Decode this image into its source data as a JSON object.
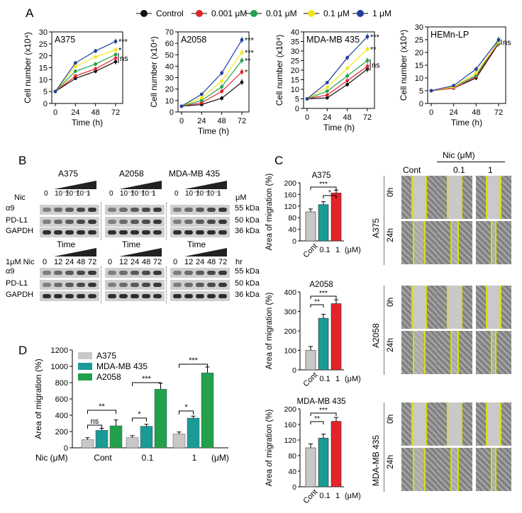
{
  "panel_letters": {
    "a": "A",
    "b": "B",
    "c": "C",
    "d": "D"
  },
  "legend": {
    "items": [
      {
        "label": "Control",
        "color": "#111111"
      },
      {
        "label": "0.001 μM",
        "color": "#e0242b"
      },
      {
        "label": "0.01 μM",
        "color": "#22a04b"
      },
      {
        "label": "0.1 μM",
        "color": "#f2e61a"
      },
      {
        "label": "1 μM",
        "color": "#1f3f9a"
      }
    ]
  },
  "chart_data": [
    {
      "type": "line",
      "panel": "A",
      "title": "A375",
      "xlabel": "Time (h)",
      "ylabel": "Cell number (x10⁴)",
      "x": [
        0,
        24,
        48,
        72
      ],
      "xticks": [
        "0",
        "24",
        "48",
        "72"
      ],
      "ylim": [
        0,
        30
      ],
      "yticks": [
        0,
        5,
        10,
        15,
        20,
        25,
        30
      ],
      "series": [
        {
          "name": "Control",
          "values": [
            5,
            10.5,
            13.5,
            17.5
          ]
        },
        {
          "name": "0.001 μM",
          "values": [
            5,
            11.5,
            14.5,
            19
          ]
        },
        {
          "name": "0.01 μM",
          "values": [
            5,
            13.5,
            16.5,
            20.5
          ]
        },
        {
          "name": "0.1 μM",
          "values": [
            5,
            15.5,
            19.5,
            22.5
          ]
        },
        {
          "name": "1 μM",
          "values": [
            5,
            17,
            22,
            26
          ]
        }
      ],
      "annotations": [
        "***",
        "*",
        "ns"
      ]
    },
    {
      "type": "line",
      "panel": "A",
      "title": "A2058",
      "xlabel": "Time (h)",
      "ylabel": "Cell number (x10⁴)",
      "x": [
        0,
        24,
        48,
        72
      ],
      "xticks": [
        "0",
        "24",
        "48",
        "72"
      ],
      "ylim": [
        0,
        70
      ],
      "yticks": [
        0,
        10,
        20,
        30,
        40,
        50,
        60,
        70
      ],
      "series": [
        {
          "name": "Control",
          "values": [
            5,
            6.5,
            12,
            26
          ]
        },
        {
          "name": "0.001 μM",
          "values": [
            5,
            8,
            18,
            35
          ]
        },
        {
          "name": "0.01 μM",
          "values": [
            5,
            10,
            22,
            45
          ]
        },
        {
          "name": "0.1 μM",
          "values": [
            5,
            12.5,
            27,
            52
          ]
        },
        {
          "name": "1 μM",
          "values": [
            5,
            15.5,
            34,
            63
          ]
        }
      ],
      "annotations": [
        "***",
        "***",
        "**",
        "*"
      ]
    },
    {
      "type": "line",
      "panel": "A",
      "title": "MDA-MB 435",
      "xlabel": "Time (h)",
      "ylabel": "Cell number (x10⁴)",
      "x": [
        0,
        24,
        48,
        72
      ],
      "xticks": [
        "0",
        "24",
        "48",
        "72"
      ],
      "ylim": [
        0,
        40
      ],
      "yticks": [
        0,
        5,
        10,
        15,
        20,
        25,
        30,
        35,
        40
      ],
      "series": [
        {
          "name": "Control",
          "values": [
            5,
            5.5,
            12.5,
            20.5
          ]
        },
        {
          "name": "0.001 μM",
          "values": [
            5,
            7,
            14.5,
            22
          ]
        },
        {
          "name": "0.01 μM",
          "values": [
            5,
            9,
            17,
            25
          ]
        },
        {
          "name": "0.1 μM",
          "values": [
            5,
            11,
            21,
            31
          ]
        },
        {
          "name": "1 μM",
          "values": [
            5,
            13.5,
            26.5,
            37.5
          ]
        }
      ],
      "annotations": [
        "***",
        "**",
        "ns"
      ]
    },
    {
      "type": "line",
      "panel": "A",
      "title": "HEMn-LP",
      "xlabel": "Time (h)",
      "ylabel": "Cell number (x10⁴)",
      "x": [
        0,
        24,
        48,
        72
      ],
      "xticks": [
        "0",
        "24",
        "48",
        "72"
      ],
      "ylim": [
        0,
        30
      ],
      "yticks": [
        0,
        5,
        10,
        15,
        20,
        25,
        30
      ],
      "series": [
        {
          "name": "Control",
          "values": [
            5,
            6,
            10,
            23.5
          ]
        },
        {
          "name": "0.001 μM",
          "values": [
            5,
            6,
            10.5,
            24
          ]
        },
        {
          "name": "0.01 μM",
          "values": [
            5,
            6.5,
            11,
            24.5
          ]
        },
        {
          "name": "0.1 μM",
          "values": [
            5,
            6.5,
            12,
            24
          ]
        },
        {
          "name": "1 μM",
          "values": [
            5,
            7,
            13.5,
            25
          ]
        }
      ],
      "annotations": [
        "ns"
      ]
    },
    {
      "type": "bar",
      "panel": "C",
      "title": "A375",
      "ylabel": "Area of migration (%)",
      "categories": [
        "Cont",
        "0.1",
        "1"
      ],
      "unit": "(μM)",
      "values": [
        100,
        125,
        165
      ],
      "ylim": [
        0,
        200
      ],
      "yticks": [
        0,
        40,
        80,
        120,
        160,
        200
      ],
      "colors": [
        "#c8c8c8",
        "#1a9b96",
        "#e3222a"
      ],
      "annotations": [
        "***",
        "*"
      ]
    },
    {
      "type": "bar",
      "panel": "C",
      "title": "A2058",
      "ylabel": "Area of migration (%)",
      "categories": [
        "Cont",
        "0.1",
        "1"
      ],
      "unit": "(μM)",
      "values": [
        100,
        265,
        340
      ],
      "ylim": [
        0,
        400
      ],
      "yticks": [
        0,
        100,
        200,
        300,
        400
      ],
      "colors": [
        "#c8c8c8",
        "#1a9b96",
        "#e3222a"
      ],
      "annotations": [
        "***",
        "**"
      ]
    },
    {
      "type": "bar",
      "panel": "C",
      "title": "MDA-MB 435",
      "ylabel": "Area of migration (%)",
      "categories": [
        "Cont",
        "0.1",
        "1"
      ],
      "unit": "(μM)",
      "values": [
        100,
        125,
        168
      ],
      "ylim": [
        0,
        200
      ],
      "yticks": [
        0,
        40,
        80,
        120,
        160,
        200
      ],
      "colors": [
        "#c8c8c8",
        "#1a9b96",
        "#e3222a"
      ],
      "annotations": [
        "***",
        "**"
      ]
    },
    {
      "type": "bar",
      "panel": "D",
      "ylabel": "Area of migration (%)",
      "categories": [
        "Cont",
        "0.1",
        "1"
      ],
      "xprefix": "Nic (μM)",
      "xunit": "(μM)",
      "ylim": [
        0,
        1200
      ],
      "yticks": [
        0,
        200,
        400,
        600,
        800,
        1000,
        1200
      ],
      "series": [
        {
          "name": "A375",
          "color": "#c8c8c8",
          "values": [
            100,
            125,
            170
          ]
        },
        {
          "name": "MDA-MB 435",
          "color": "#1a9b96",
          "values": [
            215,
            265,
            365
          ]
        },
        {
          "name": "A2058",
          "color": "#22a04b",
          "values": [
            270,
            720,
            920
          ]
        }
      ],
      "annotations": [
        "**",
        "ns",
        "***",
        "*",
        "***",
        "*"
      ]
    }
  ],
  "western": {
    "cell_lines": [
      "A375",
      "A2058",
      "MDA-MB 435"
    ],
    "nic_label": "Nic",
    "dose_labels": [
      "0",
      "10⁻³",
      "10⁻²",
      "10⁻¹",
      "1"
    ],
    "dose_unit": "μM",
    "time_label": "Time",
    "time_row_label": "1μM Nic",
    "time_labels": [
      "0",
      "12",
      "24",
      "48",
      "72"
    ],
    "time_unit": "hr",
    "proteins": [
      "α9",
      "PD-L1",
      "GAPDH"
    ],
    "kda": [
      "55 kDa",
      "50 kDa",
      "36 kDa"
    ]
  },
  "migration_images": {
    "header": "Nic (μM)",
    "columns": [
      "Cont",
      "0.1",
      "1"
    ],
    "rows": [
      "0h",
      "24h"
    ],
    "cell_lines": [
      "A375",
      "A2058",
      "MDA-MB 435"
    ]
  }
}
